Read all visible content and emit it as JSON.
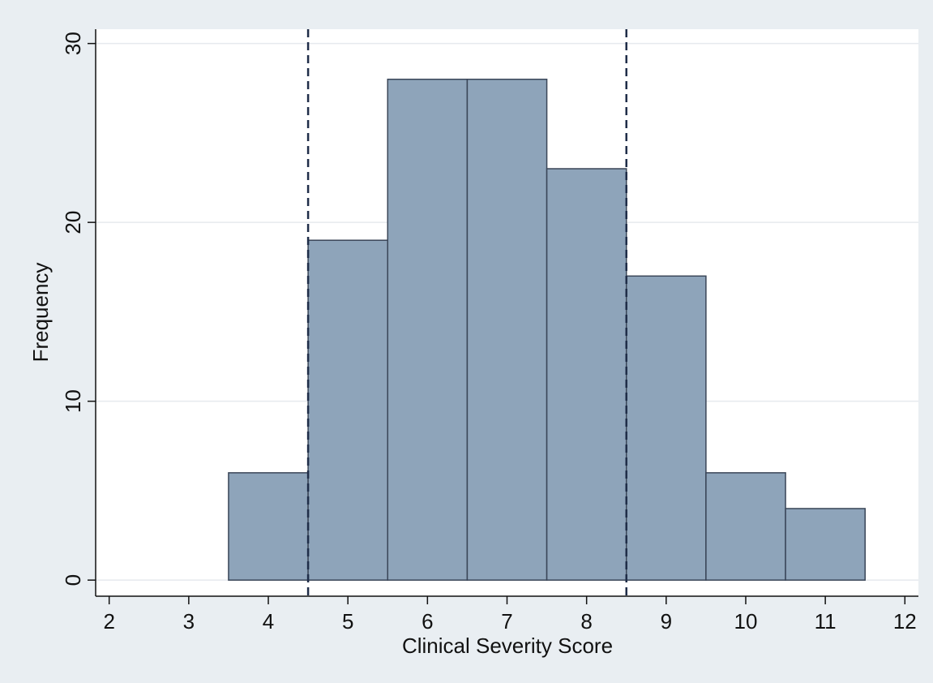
{
  "chart_data": {
    "type": "histogram",
    "x_label": "Clinical Severity Score",
    "y_label": "Frequency",
    "bins": [
      3.5,
      4.5,
      5.5,
      6.5,
      7.5,
      8.5,
      9.5,
      10.5,
      11.5
    ],
    "counts": [
      6,
      19,
      28,
      28,
      23,
      17,
      6,
      4
    ],
    "color": "#8ea4ba",
    "edge_color": "#3a4658",
    "reference_lines": [
      4.5,
      8.5
    ],
    "reference_color": "#1f2d48",
    "xlim": [
      1.83,
      12.17
    ],
    "xticks": [
      2,
      3,
      4,
      5,
      6,
      7,
      8,
      9,
      10,
      11,
      12
    ],
    "ylim": [
      -0.9,
      30.8
    ],
    "yticks": [
      0,
      10,
      20,
      30
    ],
    "grid": true
  }
}
